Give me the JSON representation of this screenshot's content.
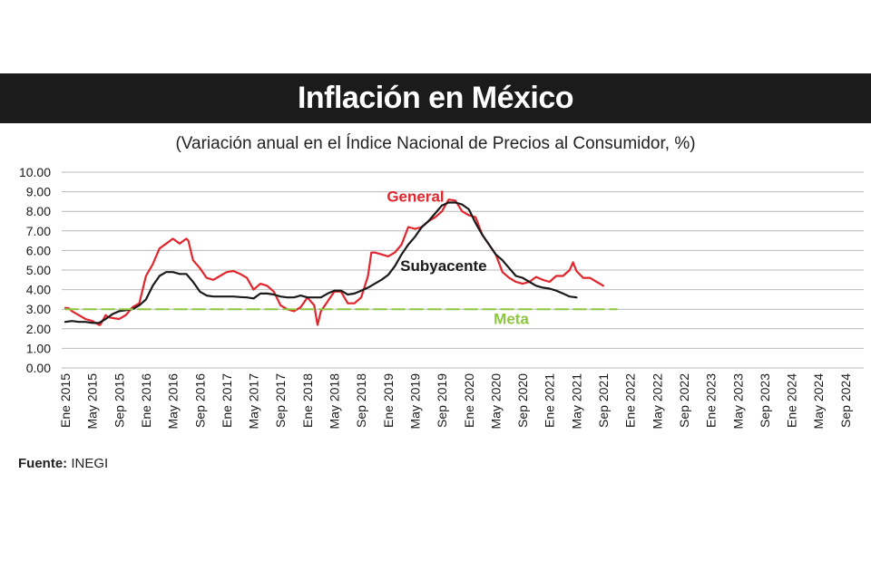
{
  "header": {
    "title": "Inflación en México",
    "subtitle": "(Variación anual en el Índice Nacional de Precios al Consumidor, %)"
  },
  "footer": {
    "source_label": "Fuente:",
    "source_value": "INEGI"
  },
  "chart_data": {
    "type": "line",
    "title": "Inflación en México",
    "subtitle": "(Variación anual en el Índice Nacional de Precios al Consumidor, %)",
    "xlabel": "",
    "ylabel": "",
    "ylim": [
      0,
      10
    ],
    "yticks": [
      "0.00",
      "1.00",
      "2.00",
      "3.00",
      "4.00",
      "5.00",
      "6.00",
      "7.00",
      "8.00",
      "9.00",
      "10.00"
    ],
    "xticks": [
      "Ene 2015",
      "May 2015",
      "Sep 2015",
      "Ene 2016",
      "May 2016",
      "Sep 2016",
      "Ene 2017",
      "May 2017",
      "Sep 2017",
      "Ene 2018",
      "May 2018",
      "Sep 2018",
      "Ene 2019",
      "May 2019",
      "Sep 2019",
      "Ene 2020",
      "May 2020",
      "Sep 2020",
      "Ene 2021",
      "May 2021",
      "Sep 2021",
      "Ene 2022",
      "May 2022",
      "Sep 2022",
      "Ene 2023",
      "May 2023",
      "Sep 2023",
      "Ene 2024",
      "May 2024",
      "Sep 2024"
    ],
    "grid": "horizontal",
    "colors": {
      "general": "#e0262c",
      "subyacente": "#1a1a1a",
      "meta": "#8dc63f"
    },
    "series": [
      {
        "name": "General",
        "color": "#e0262c",
        "points": [
          [
            0,
            3.07
          ],
          [
            0.5,
            3.05
          ],
          [
            1,
            2.9
          ],
          [
            2,
            2.7
          ],
          [
            3,
            2.5
          ],
          [
            4,
            2.4
          ],
          [
            5,
            2.2
          ],
          [
            5.2,
            2.2
          ],
          [
            6,
            2.7
          ],
          [
            6.3,
            2.6
          ],
          [
            7,
            2.55
          ],
          [
            8,
            2.5
          ],
          [
            9,
            2.7
          ],
          [
            10,
            3.1
          ],
          [
            11,
            3.3
          ],
          [
            12,
            4.7
          ],
          [
            13,
            5.3
          ],
          [
            14,
            6.1
          ],
          [
            15,
            6.35
          ],
          [
            16,
            6.6
          ],
          [
            17,
            6.35
          ],
          [
            18,
            6.6
          ],
          [
            18.3,
            6.5
          ],
          [
            19,
            5.5
          ],
          [
            20,
            5.1
          ],
          [
            21,
            4.6
          ],
          [
            22,
            4.5
          ],
          [
            23,
            4.7
          ],
          [
            24,
            4.9
          ],
          [
            25,
            4.95
          ],
          [
            26,
            4.8
          ],
          [
            27,
            4.6
          ],
          [
            28,
            4.0
          ],
          [
            29,
            4.3
          ],
          [
            30,
            4.2
          ],
          [
            31,
            3.9
          ],
          [
            32,
            3.2
          ],
          [
            33,
            3.0
          ],
          [
            34,
            2.9
          ],
          [
            35,
            3.1
          ],
          [
            36,
            3.6
          ],
          [
            37,
            3.2
          ],
          [
            37.5,
            2.2
          ],
          [
            38,
            2.9
          ],
          [
            39,
            3.4
          ],
          [
            40,
            3.9
          ],
          [
            41,
            3.9
          ],
          [
            42,
            3.3
          ],
          [
            43,
            3.3
          ],
          [
            44,
            3.6
          ],
          [
            45,
            4.7
          ],
          [
            45.5,
            5.9
          ],
          [
            46,
            5.9
          ],
          [
            47,
            5.8
          ],
          [
            48,
            5.7
          ],
          [
            49,
            5.9
          ],
          [
            50,
            6.3
          ],
          [
            51,
            7.2
          ],
          [
            52,
            7.1
          ],
          [
            53,
            7.2
          ],
          [
            54,
            7.5
          ],
          [
            55,
            7.7
          ],
          [
            56,
            8.0
          ],
          [
            57,
            8.6
          ],
          [
            58,
            8.55
          ],
          [
            59,
            8.0
          ],
          [
            60,
            7.8
          ],
          [
            61,
            7.7
          ],
          [
            62,
            6.8
          ],
          [
            63,
            6.3
          ],
          [
            64,
            5.8
          ],
          [
            65,
            4.9
          ],
          [
            66,
            4.6
          ],
          [
            67,
            4.4
          ],
          [
            68,
            4.3
          ],
          [
            69,
            4.4
          ],
          [
            70,
            4.65
          ],
          [
            71,
            4.5
          ],
          [
            72,
            4.4
          ],
          [
            73,
            4.7
          ],
          [
            74,
            4.7
          ],
          [
            75,
            5.0
          ],
          [
            75.5,
            5.4
          ],
          [
            76,
            4.95
          ],
          [
            77,
            4.6
          ],
          [
            78,
            4.6
          ],
          [
            79,
            4.4
          ],
          [
            80,
            4.2
          ]
        ]
      },
      {
        "name": "Subyacente",
        "color": "#1a1a1a",
        "points": [
          [
            0,
            2.35
          ],
          [
            1,
            2.4
          ],
          [
            2,
            2.35
          ],
          [
            3,
            2.35
          ],
          [
            4,
            2.3
          ],
          [
            5,
            2.3
          ],
          [
            6,
            2.5
          ],
          [
            7,
            2.75
          ],
          [
            8,
            2.9
          ],
          [
            9,
            2.95
          ],
          [
            10,
            3.0
          ],
          [
            11,
            3.2
          ],
          [
            12,
            3.5
          ],
          [
            13,
            4.2
          ],
          [
            14,
            4.7
          ],
          [
            15,
            4.9
          ],
          [
            16,
            4.9
          ],
          [
            17,
            4.8
          ],
          [
            18,
            4.8
          ],
          [
            19,
            4.4
          ],
          [
            20,
            3.9
          ],
          [
            21,
            3.7
          ],
          [
            22,
            3.65
          ],
          [
            23,
            3.65
          ],
          [
            24,
            3.65
          ],
          [
            25,
            3.65
          ],
          [
            26,
            3.62
          ],
          [
            27,
            3.6
          ],
          [
            28,
            3.55
          ],
          [
            29,
            3.8
          ],
          [
            30,
            3.8
          ],
          [
            31,
            3.75
          ],
          [
            32,
            3.65
          ],
          [
            33,
            3.6
          ],
          [
            34,
            3.6
          ],
          [
            35,
            3.7
          ],
          [
            36,
            3.6
          ],
          [
            37,
            3.6
          ],
          [
            38,
            3.6
          ],
          [
            39,
            3.8
          ],
          [
            40,
            3.95
          ],
          [
            41,
            3.95
          ],
          [
            42,
            3.75
          ],
          [
            43,
            3.8
          ],
          [
            44,
            3.95
          ],
          [
            45,
            4.1
          ],
          [
            46,
            4.3
          ],
          [
            47,
            4.5
          ],
          [
            48,
            4.75
          ],
          [
            49,
            5.2
          ],
          [
            50,
            5.8
          ],
          [
            51,
            6.3
          ],
          [
            52,
            6.7
          ],
          [
            53,
            7.2
          ],
          [
            54,
            7.5
          ],
          [
            55,
            7.9
          ],
          [
            56,
            8.3
          ],
          [
            57,
            8.45
          ],
          [
            58,
            8.45
          ],
          [
            59,
            8.35
          ],
          [
            60,
            8.1
          ],
          [
            61,
            7.4
          ],
          [
            62,
            6.8
          ],
          [
            63,
            6.3
          ],
          [
            64,
            5.8
          ],
          [
            65,
            5.5
          ],
          [
            66,
            5.1
          ],
          [
            67,
            4.7
          ],
          [
            68,
            4.6
          ],
          [
            69,
            4.4
          ],
          [
            70,
            4.2
          ],
          [
            71,
            4.1
          ],
          [
            72,
            4.05
          ],
          [
            73,
            3.95
          ],
          [
            74,
            3.8
          ],
          [
            75,
            3.65
          ],
          [
            76,
            3.6
          ]
        ]
      },
      {
        "name": "Meta",
        "color": "#8dc63f",
        "points": [
          [
            0,
            3.0
          ],
          [
            82,
            3.0
          ]
        ]
      }
    ]
  }
}
